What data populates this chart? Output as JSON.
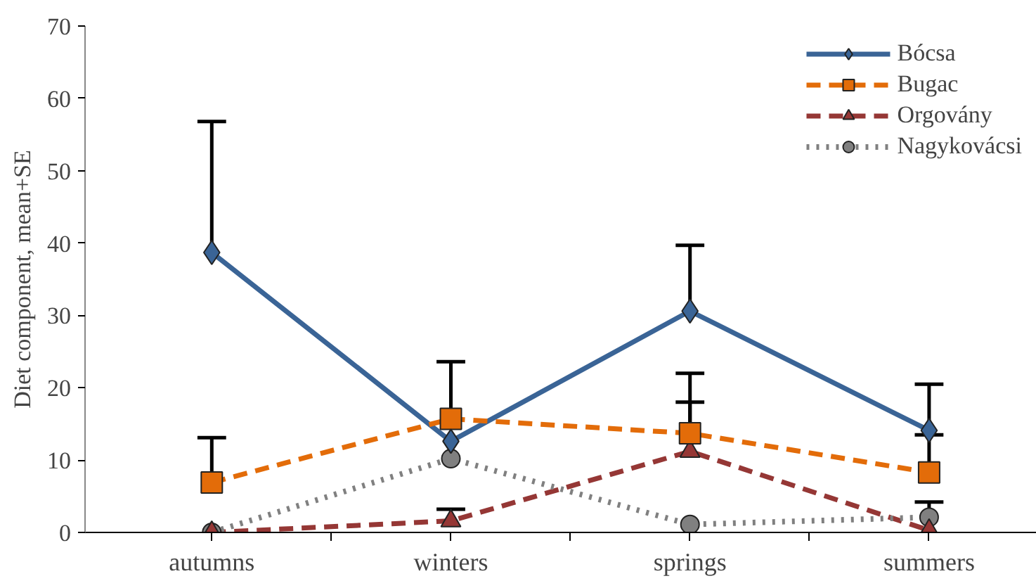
{
  "chart_data": {
    "type": "line",
    "ylabel": "Diet component, mean+SE",
    "categories": [
      "autumns",
      "winters",
      "springs",
      "summers"
    ],
    "ylim": [
      0,
      70
    ],
    "yticks": [
      0,
      10,
      20,
      30,
      40,
      50,
      60,
      70
    ],
    "grid": false,
    "legend": "top right",
    "series": [
      {
        "name": "Bócsa",
        "color": "#3a6496",
        "marker": "diamond",
        "line_style": "solid",
        "values": [
          38.7,
          12.6,
          30.6,
          14.1
        ],
        "errors": [
          [
            38.7,
            56.8
          ],
          null,
          [
            30.6,
            39.7
          ],
          [
            14.1,
            20.5
          ]
        ]
      },
      {
        "name": "Bugac",
        "color": "#e36c09",
        "marker": "square",
        "line_style": "dashed",
        "values": [
          6.9,
          15.7,
          13.7,
          8.3
        ],
        "errors": [
          [
            6.9,
            13.1
          ],
          [
            15.7,
            23.6
          ],
          [
            13.7,
            22.0
          ],
          [
            8.3,
            13.5
          ]
        ]
      },
      {
        "name": "Orgovány",
        "color": "#953735",
        "marker": "triangle",
        "line_style": "dashed",
        "values": [
          0,
          1.6,
          11.2,
          0.3
        ],
        "errors": [
          null,
          [
            1.6,
            3.2
          ],
          [
            11.2,
            18.0
          ],
          null
        ]
      },
      {
        "name": "Nagykovácsi",
        "color": "#808080",
        "marker": "circle",
        "line_style": "dotted",
        "values": [
          0,
          10.2,
          1.1,
          2.1
        ],
        "errors": [
          null,
          null,
          null,
          [
            2.1,
            4.2
          ]
        ]
      }
    ]
  }
}
